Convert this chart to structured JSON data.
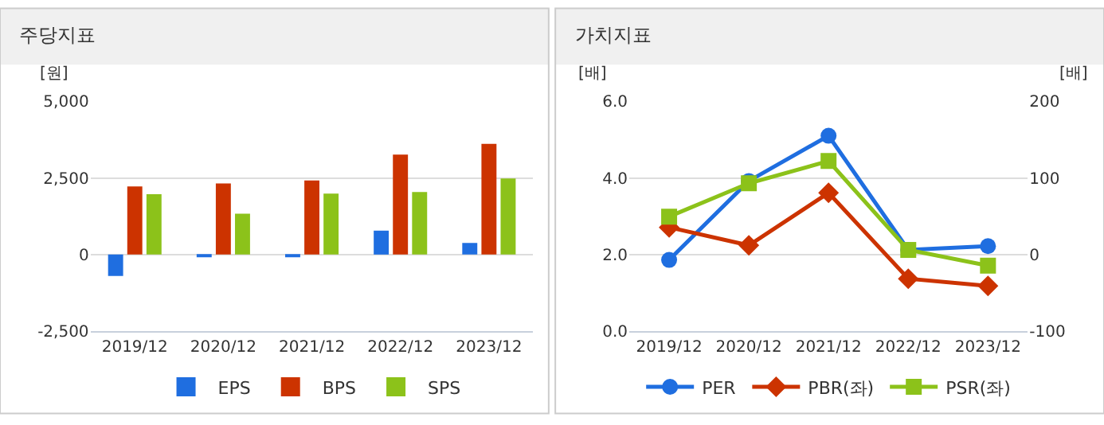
{
  "chart_data": [
    {
      "type": "bar",
      "title": "주당지표",
      "ylabel": "[원]",
      "categories": [
        "2019/12",
        "2020/12",
        "2021/12",
        "2022/12",
        "2023/12"
      ],
      "series": [
        {
          "name": "EPS",
          "color": "#1f6ee0",
          "values": [
            -700,
            -40,
            -40,
            780,
            380
          ]
        },
        {
          "name": "BPS",
          "color": "#cc3300",
          "values": [
            2220,
            2320,
            2420,
            3260,
            3610
          ]
        },
        {
          "name": "SPS",
          "color": "#8cc21a",
          "values": [
            1970,
            1330,
            1990,
            2040,
            2480
          ]
        }
      ],
      "ylim": [
        -2500,
        5000
      ],
      "yticks": [
        {
          "value": -2500,
          "label": "-2,500"
        },
        0,
        {
          "value": 2500,
          "label": "2,500"
        },
        {
          "value": 5000,
          "label": "5,000"
        }
      ],
      "grid": "y",
      "legend": "bottom"
    },
    {
      "type": "line",
      "title": "가치지표",
      "ylabel": "[배]",
      "y2label": "[배]",
      "categories": [
        "2019/12",
        "2020/12",
        "2021/12",
        "2022/12",
        "2023/12"
      ],
      "series": [
        {
          "name": "PER",
          "color": "#1f6ee0",
          "axis": "y2",
          "marker": "circle",
          "values": [
            -7,
            96,
            155,
            6,
            11
          ]
        },
        {
          "name": "PBR(좌)",
          "color": "#cc3300",
          "marker": "diamond",
          "values": [
            2.71,
            2.24,
            3.61,
            1.37,
            1.18
          ]
        },
        {
          "name": "PSR(좌)",
          "color": "#8cc21a",
          "marker": "square",
          "values": [
            2.99,
            3.86,
            4.44,
            2.12,
            1.71
          ]
        }
      ],
      "ylim": [
        0,
        6
      ],
      "yticks": [
        {
          "value": 0,
          "label": "0.0"
        },
        {
          "value": 2,
          "label": "2.0"
        },
        {
          "value": 4,
          "label": "4.0"
        },
        {
          "value": 6,
          "label": "6.0"
        }
      ],
      "y2lim": [
        -100,
        200
      ],
      "y2ticks": [
        -100,
        0,
        100,
        200
      ],
      "grid": "y",
      "legend": "bottom"
    }
  ]
}
